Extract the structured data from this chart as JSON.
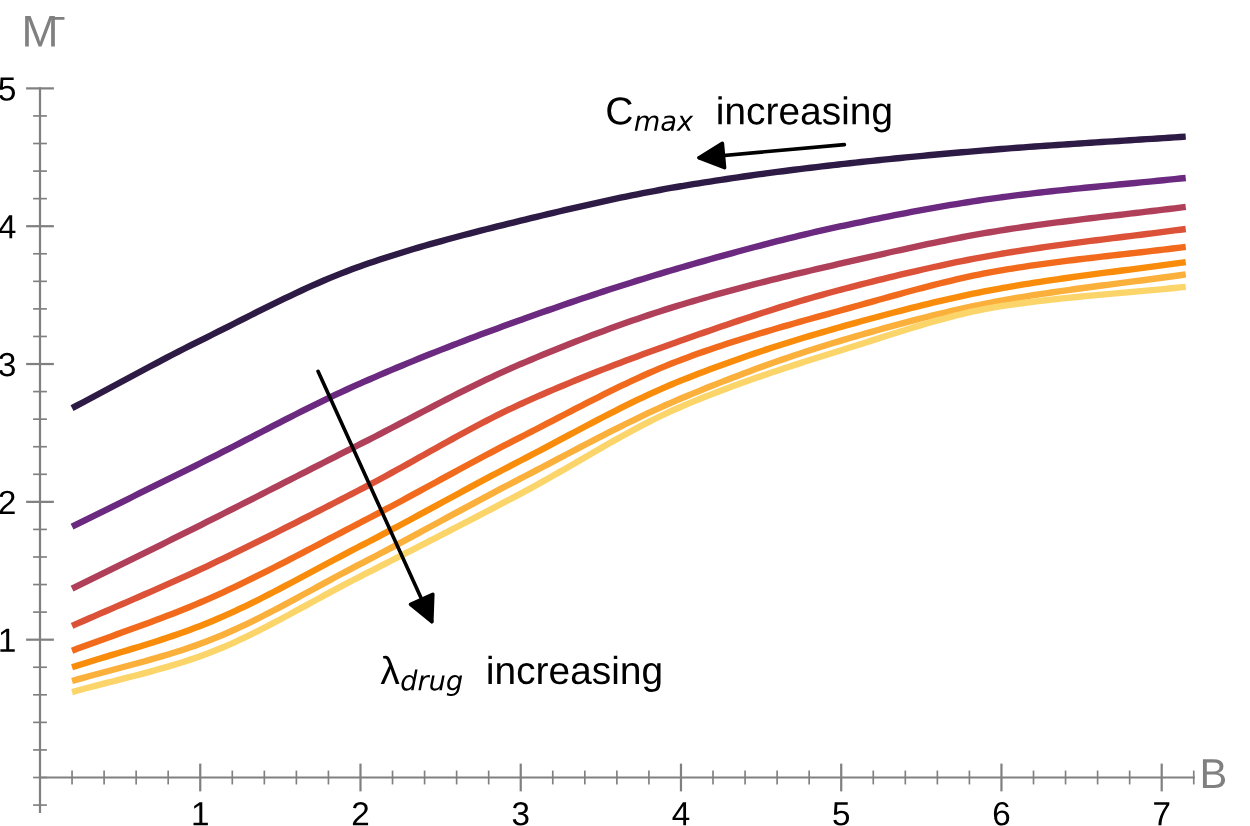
{
  "chart_data": {
    "type": "line",
    "xlabel": "B",
    "ylabel": "M̄",
    "xlim": [
      0,
      7.2
    ],
    "ylim": [
      -0.25,
      5
    ],
    "xticks": [
      1,
      2,
      3,
      4,
      5,
      6,
      7
    ],
    "yticks": [
      1,
      2,
      3,
      4,
      5
    ],
    "grid": false,
    "marker": "none",
    "line_style": "solid",
    "series": [
      {
        "color": "#2d1b45",
        "x": [
          0.2,
          1,
          2,
          3,
          4,
          5,
          6,
          7.15
        ],
        "values": [
          2.68,
          3.17,
          3.71,
          4.04,
          4.29,
          4.45,
          4.56,
          4.65
        ]
      },
      {
        "color": "#6b2a80",
        "x": [
          0.2,
          1,
          2,
          3,
          4,
          5,
          6,
          7.15
        ],
        "values": [
          1.82,
          2.28,
          2.86,
          3.32,
          3.7,
          4.0,
          4.21,
          4.35
        ]
      },
      {
        "color": "#b0405a",
        "x": [
          0.2,
          1,
          2,
          3,
          4,
          5,
          6,
          7.15
        ],
        "values": [
          1.37,
          1.83,
          2.42,
          3.0,
          3.43,
          3.73,
          3.97,
          4.14
        ]
      },
      {
        "color": "#dc5238",
        "x": [
          0.2,
          1,
          2,
          3,
          4,
          5,
          6,
          7.15
        ],
        "values": [
          1.1,
          1.51,
          2.09,
          2.71,
          3.17,
          3.54,
          3.8,
          3.98
        ]
      },
      {
        "color": "#f26b1d",
        "x": [
          0.2,
          1,
          2,
          3,
          4,
          5,
          6,
          7.15
        ],
        "values": [
          0.92,
          1.27,
          1.85,
          2.47,
          3.03,
          3.39,
          3.68,
          3.85
        ]
      },
      {
        "color": "#f98c0a",
        "x": [
          0.2,
          1,
          2,
          3,
          4,
          5,
          6,
          7.15
        ],
        "values": [
          0.8,
          1.1,
          1.68,
          2.3,
          2.88,
          3.27,
          3.55,
          3.74
        ]
      },
      {
        "color": "#fbb03b",
        "x": [
          0.2,
          1,
          2,
          3,
          4,
          5,
          6,
          7.15
        ],
        "values": [
          0.7,
          0.97,
          1.55,
          2.17,
          2.75,
          3.17,
          3.46,
          3.65
        ]
      },
      {
        "color": "#fcd56a",
        "x": [
          0.2,
          1,
          2,
          3,
          4,
          5,
          6,
          7.15
        ],
        "values": [
          0.62,
          0.88,
          1.46,
          2.06,
          2.69,
          3.1,
          3.42,
          3.56
        ]
      }
    ],
    "annotations": [
      "C$_{max}$  increasing",
      "λ$_{drug}$  increasing"
    ]
  }
}
